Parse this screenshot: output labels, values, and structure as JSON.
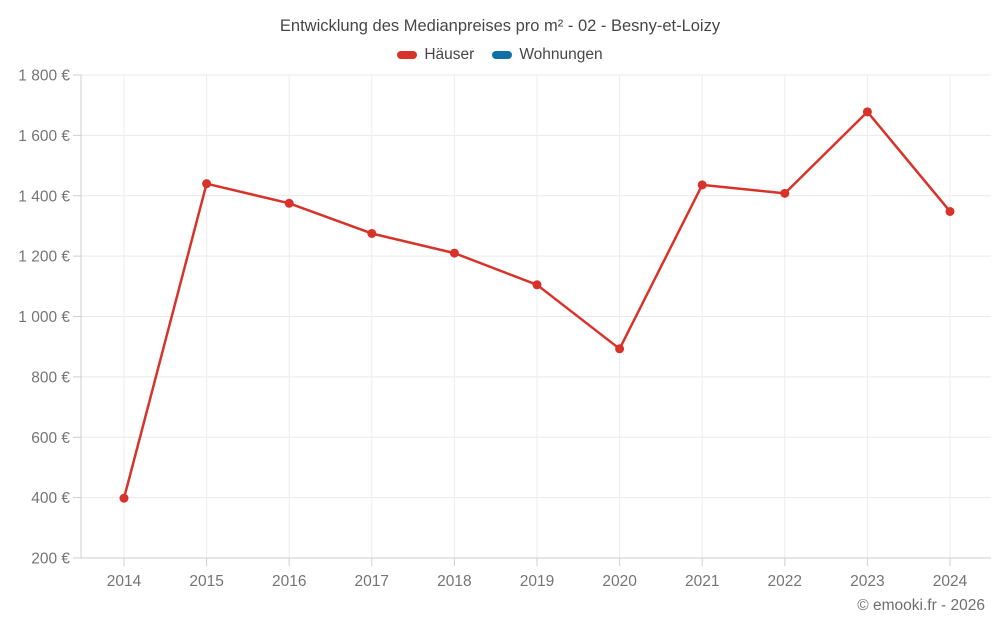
{
  "title": "Entwicklung des Medianpreises pro m² - 02 - Besny-et-Loizy",
  "legend": {
    "items": [
      {
        "label": "Häuser",
        "color": "#d8332b"
      },
      {
        "label": "Wohnungen",
        "color": "#0f70a8"
      }
    ]
  },
  "footer": {
    "credit": "© emooki.fr - 2026"
  },
  "chart_data": {
    "type": "line",
    "title": "Entwicklung des Medianpreises pro m² - 02 - Besny-et-Loizy",
    "categories": [
      "2014",
      "2015",
      "2016",
      "2017",
      "2018",
      "2019",
      "2020",
      "2021",
      "2022",
      "2023",
      "2024"
    ],
    "series": [
      {
        "name": "Häuser",
        "color": "#d8332b",
        "values": [
          398,
          1440,
          1375,
          1275,
          1210,
          1105,
          893,
          1436,
          1408,
          1678,
          1348
        ]
      },
      {
        "name": "Wohnungen",
        "color": "#0f70a8",
        "values": []
      }
    ],
    "xlabel": "",
    "ylabel": "",
    "ylim": [
      200,
      1800
    ],
    "ytick_step": 200,
    "ytick_format": "{value} €",
    "grid": true,
    "legend_position": "top"
  }
}
